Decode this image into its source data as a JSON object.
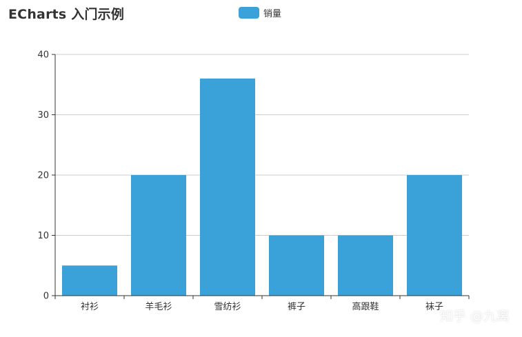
{
  "watermark": "知乎 @九离",
  "colors": {
    "bar": "#3aa1d9",
    "axis": "#333333",
    "grid": "#cccccc",
    "text": "#333333"
  },
  "chart_data": {
    "type": "bar",
    "title": "ECharts 入门示例",
    "legend": [
      "销量"
    ],
    "legend_position": "top-center",
    "categories": [
      "衬衫",
      "羊毛衫",
      "雪纺衫",
      "裤子",
      "高跟鞋",
      "袜子"
    ],
    "series": [
      {
        "name": "销量",
        "values": [
          5,
          20,
          36,
          10,
          10,
          20
        ]
      }
    ],
    "ylim": [
      0,
      40
    ],
    "yticks": [
      0,
      10,
      20,
      30,
      40
    ],
    "grid": true
  }
}
